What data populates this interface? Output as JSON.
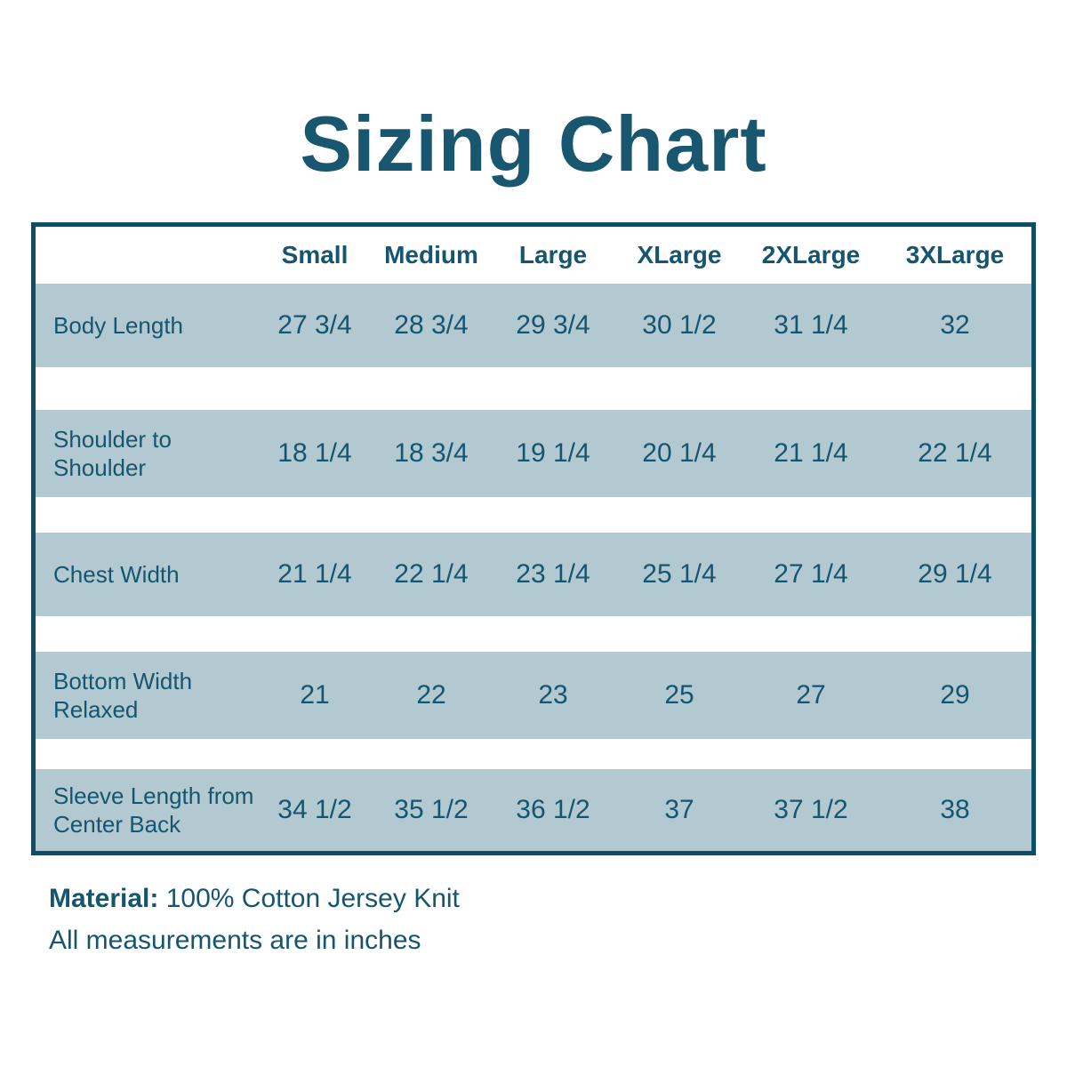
{
  "title": "Sizing Chart",
  "colors": {
    "text_teal": "#15556F",
    "title_teal": "#19566F",
    "table_border": "#0E4D68",
    "row_band": "#B3C9D2",
    "background": "#FFFFFF"
  },
  "chart_data": {
    "type": "table",
    "title": "Sizing Chart",
    "columns": [
      "Small",
      "Medium",
      "Large",
      "XLarge",
      "2XLarge",
      "3XLarge"
    ],
    "rows": [
      {
        "label": "Body Length",
        "values": [
          "27 3/4",
          "28 3/4",
          "29 3/4",
          "30 1/2",
          "31 1/4",
          "32"
        ]
      },
      {
        "label": "Shoulder to Shoulder",
        "values": [
          "18 1/4",
          "18 3/4",
          "19 1/4",
          "20 1/4",
          "21 1/4",
          "22 1/4"
        ]
      },
      {
        "label": "Chest Width",
        "values": [
          "21 1/4",
          "22 1/4",
          "23 1/4",
          "25 1/4",
          "27 1/4",
          "29 1/4"
        ]
      },
      {
        "label": "Bottom Width Relaxed",
        "values": [
          "21",
          "22",
          "23",
          "25",
          "27",
          "29"
        ]
      },
      {
        "label": "Sleeve Length from Center Back",
        "values": [
          "34 1/2",
          "35 1/2",
          "36 1/2",
          "37",
          "37 1/2",
          "38"
        ]
      }
    ],
    "layout_hints": {
      "banded_rows": true,
      "band_color": "#B3C9D2",
      "units": "inches"
    }
  },
  "notes": {
    "material_label": "Material:",
    "material_value": " 100% Cotton Jersey Knit",
    "measurements_note": "All measurements are in inches"
  }
}
